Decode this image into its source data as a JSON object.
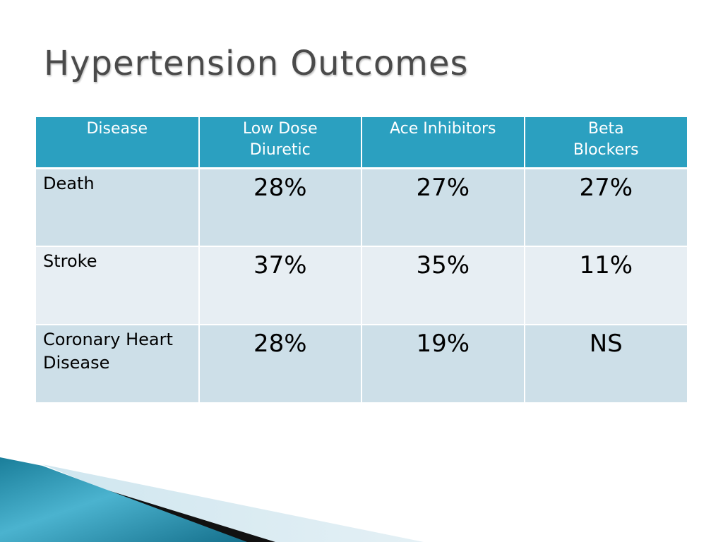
{
  "slide": {
    "title": "Hypertension Outcomes"
  },
  "table": {
    "headers": [
      "Disease",
      "Low Dose\nDiuretic",
      "Ace Inhibitors",
      "Beta\nBlockers"
    ],
    "rows": [
      {
        "disease": "Death",
        "values": [
          "28%",
          "27%",
          "27%"
        ]
      },
      {
        "disease": "Stroke",
        "values": [
          "37%",
          "35%",
          "11%"
        ]
      },
      {
        "disease": "Coronary Heart\nDisease",
        "values": [
          "28%",
          "19%",
          "NS"
        ]
      }
    ]
  },
  "colors": {
    "header_bg": "#2ba0c0",
    "row_odd_bg": "#cddfe8",
    "row_even_bg": "#e7eef3",
    "title_color": "#4a4a4a",
    "accent_teal": "#1f7f9c"
  }
}
